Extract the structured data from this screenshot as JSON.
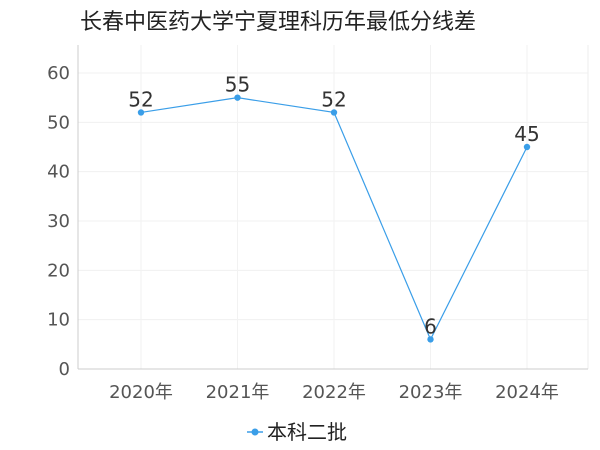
{
  "chart_data": {
    "type": "line",
    "title": "长春中医药大学宁夏理科历年最低分线差",
    "xlabel": "",
    "ylabel": "",
    "categories": [
      "2020年",
      "2021年",
      "2022年",
      "2023年",
      "2024年"
    ],
    "series": [
      {
        "name": "本科二批",
        "values": [
          52,
          55,
          52,
          6,
          45
        ],
        "color": "#3a9ee8"
      }
    ],
    "ylim": [
      0,
      60
    ],
    "yticks": [
      0,
      10,
      20,
      30,
      40,
      50,
      60
    ],
    "grid": true,
    "legend_position": "bottom-center",
    "data_labels": true
  }
}
